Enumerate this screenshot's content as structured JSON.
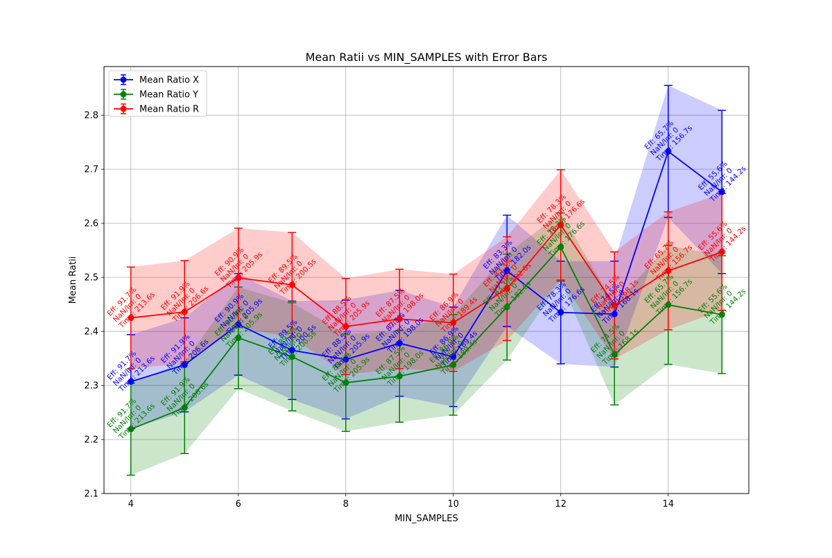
{
  "chart_data": {
    "type": "line",
    "title": "Mean Ratii vs MIN_SAMPLES with Error Bars",
    "xlabel": "MIN_SAMPLES",
    "ylabel": "Mean Ratii",
    "x": [
      4,
      5,
      6,
      7,
      8,
      9,
      10,
      11,
      12,
      13,
      14,
      15
    ],
    "xlim": [
      3.5,
      15.5
    ],
    "ylim": [
      2.1,
      2.89
    ],
    "xticks": [
      "4",
      "6",
      "8",
      "10",
      "12",
      "14"
    ],
    "yticks": [
      "2.1",
      "2.2",
      "2.3",
      "2.4",
      "2.5",
      "2.6",
      "2.7",
      "2.8"
    ],
    "grid": true,
    "legend_position": "top-left",
    "series": [
      {
        "name": "Mean Ratio X",
        "color": "#0000ff",
        "values": [
          2.307,
          2.338,
          2.413,
          2.365,
          2.348,
          2.378,
          2.353,
          2.512,
          2.435,
          2.432,
          2.733,
          2.658
        ],
        "errors": [
          0.087,
          0.087,
          0.094,
          0.091,
          0.11,
          0.098,
          0.092,
          0.103,
          0.095,
          0.098,
          0.122,
          0.151
        ],
        "annotations": [
          "Eff: 91.7%\nNaN/Inf: 0\nTime: 213.6s",
          "Eff: 91.9%\nNaN/Inf: 0\nTime: 206.6s",
          "Eff: 90.9%\nNaN/Inf: 0\nTime: 205.9s",
          "Eff: 89.5%\nNaN/Inf: 0\nTime: 200.5s",
          "Eff: 88.5%\nNaN/Inf: 0\nTime: 205.9s",
          "Eff: 87.5%\nNaN/Inf: 0\nTime: 198.0s",
          "Eff: 86.9%\nNaN/Inf: 0\nTime: 189.4s",
          "Eff: 83.3%\nNaN/Inf: 0\nTime: 182.0s",
          "Eff: 78.3%\nNaN/Inf: 0\nTime: 176.6s",
          "Eff: 74.5%\nNaN/Inf: 0\nTime: 168.1s",
          "Eff: 65.7%\nNaN/Inf: 0\nTime: 156.7s",
          "Eff: 55.6%\nNaN/Inf: 0\nTime: 144.2s"
        ]
      },
      {
        "name": "Mean Ratio Y",
        "color": "#008000",
        "values": [
          2.219,
          2.259,
          2.388,
          2.353,
          2.305,
          2.317,
          2.338,
          2.445,
          2.556,
          2.357,
          2.449,
          2.431
        ],
        "errors": [
          0.085,
          0.085,
          0.094,
          0.1,
          0.09,
          0.085,
          0.093,
          0.098,
          0.063,
          0.093,
          0.11,
          0.109
        ],
        "annotations": [
          "Eff: 91.7%\nNaN/Inf: 0\nTime: 213.6s",
          "Eff: 91.9%\nNaN/Inf: 0\nTime: 206.6s",
          "Eff: 90.9%\nNaN/Inf: 0\nTime: 205.9s",
          "Eff: 89.5%\nNaN/Inf: 0\nTime: 200.5s",
          "Eff: 88.5%\nNaN/Inf: 0\nTime: 205.9s",
          "Eff: 87.5%\nNaN/Inf: 0\nTime: 198.0s",
          "Eff: 86.9%\nNaN/Inf: 0\nTime: 189.4s",
          "Eff: 83.3%\nNaN/Inf: 0\nTime: 182.0s",
          "Eff: 78.3%\nNaN/Inf: 0\nTime: 176.6s",
          "Eff: 74.5%\nNaN/Inf: 0\nTime: 168.1s",
          "Eff: 65.7%\nNaN/Inf: 0\nTime: 156.7s",
          "Eff: 55.6%\nNaN/Inf: 0\nTime: 144.2s"
        ]
      },
      {
        "name": "Mean Ratio R",
        "color": "#ff0000",
        "values": [
          2.425,
          2.436,
          2.499,
          2.486,
          2.409,
          2.423,
          2.416,
          2.479,
          2.597,
          2.448,
          2.512,
          2.547
        ],
        "errors": [
          0.094,
          0.095,
          0.092,
          0.097,
          0.089,
          0.092,
          0.09,
          0.096,
          0.102,
          0.099,
          0.109,
          0.108
        ],
        "annotations": [
          "Eff: 91.7%\nNaN/Inf: 0\nTime: 213.6s",
          "Eff: 91.9%\nNaN/Inf: 0\nTime: 206.6s",
          "Eff: 90.9%\nNaN/Inf: 0\nTime: 205.9s",
          "Eff: 89.5%\nNaN/Inf: 0\nTime: 200.5s",
          "Eff: 88.5%\nNaN/Inf: 0\nTime: 205.9s",
          "Eff: 87.5%\nNaN/Inf: 0\nTime: 198.0s",
          "Eff: 86.9%\nNaN/Inf: 0\nTime: 189.4s",
          "Eff: 83.3%\nNaN/Inf: 0\nTime: 182.0s",
          "Eff: 78.3%\nNaN/Inf: 0\nTime: 176.6s",
          "Eff: 74.5%\nNaN/Inf: 0\nTime: 168.1s",
          "Eff: 65.7%\nNaN/Inf: 0\nTime: 156.7s",
          "Eff: 55.6%\nNaN/Inf: 0\nTime: 144.2s"
        ]
      }
    ]
  }
}
